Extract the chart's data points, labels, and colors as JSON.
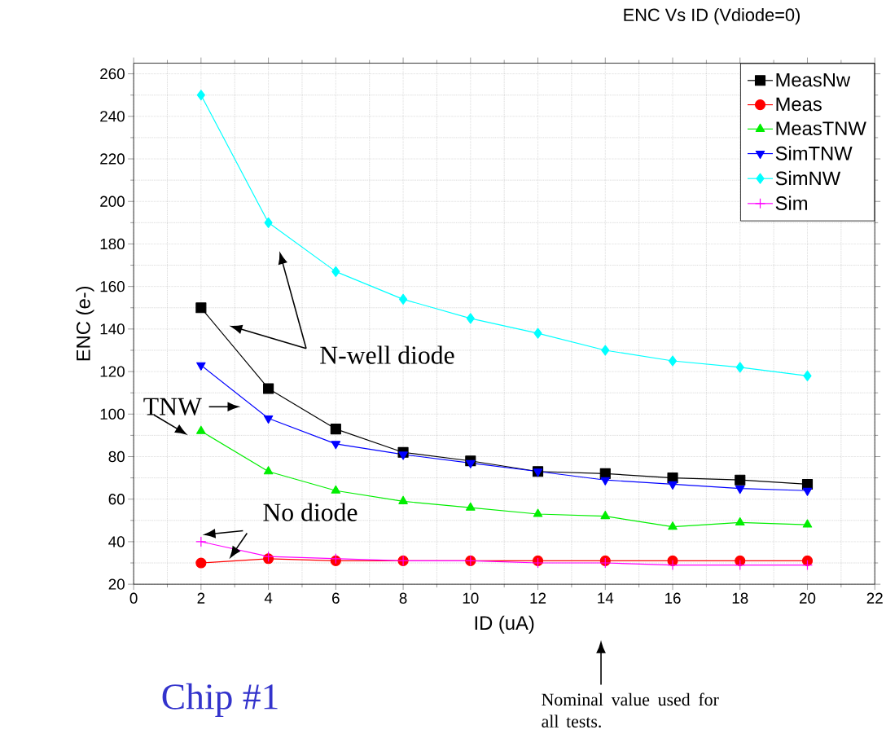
{
  "chart_data": {
    "type": "line",
    "title": "ENC Vs ID (Vdiode=0)",
    "xlabel": "ID (uA)",
    "ylabel": "ENC (e-)",
    "x": [
      2,
      4,
      6,
      8,
      10,
      12,
      14,
      16,
      18,
      20
    ],
    "series": [
      {
        "name": "MeasNw",
        "color": "#000000",
        "marker": "square",
        "values": [
          150,
          112,
          93,
          82,
          78,
          73,
          72,
          70,
          69,
          67
        ]
      },
      {
        "name": "Meas",
        "color": "#ff0000",
        "marker": "circle",
        "values": [
          30,
          32,
          31,
          31,
          31,
          31,
          31,
          31,
          31,
          31
        ]
      },
      {
        "name": "MeasTNW",
        "color": "#00ee00",
        "marker": "triangle",
        "values": [
          92,
          73,
          64,
          59,
          56,
          53,
          52,
          47,
          49,
          48
        ]
      },
      {
        "name": "SimTNW",
        "color": "#0000ff",
        "marker": "triangle-down",
        "values": [
          123,
          98,
          86,
          81,
          77,
          73,
          69,
          67,
          65,
          64
        ]
      },
      {
        "name": "SimNW",
        "color": "#00ffff",
        "marker": "diamond",
        "values": [
          250,
          190,
          167,
          154,
          145,
          138,
          130,
          125,
          122,
          118
        ]
      },
      {
        "name": "Sim",
        "color": "#ff00ff",
        "marker": "cross",
        "values": [
          40,
          33,
          32,
          31,
          31,
          30,
          30,
          29,
          29,
          29
        ]
      }
    ],
    "xlim": [
      0,
      22
    ],
    "xticks": [
      0,
      2,
      4,
      6,
      8,
      10,
      12,
      14,
      16,
      18,
      20,
      22
    ],
    "ylim": [
      20,
      265
    ],
    "yticks": [
      20,
      40,
      60,
      80,
      100,
      120,
      140,
      160,
      180,
      200,
      220,
      240,
      260
    ],
    "grid": true,
    "legend": "top right",
    "line_style": "solid",
    "annotations": [
      "N-well diode",
      "TNW",
      "No diode",
      "Chip #1",
      "Nominal value used for all tests."
    ]
  }
}
